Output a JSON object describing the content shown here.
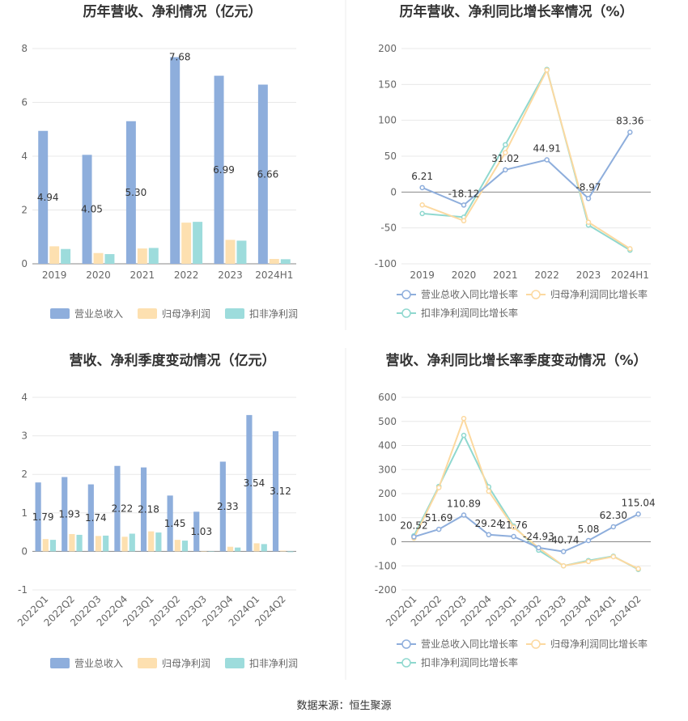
{
  "source": "数据来源：恒生聚源",
  "chart_data": [
    {
      "type": "bar",
      "title": "历年营收、净利情况（亿元）",
      "categories": [
        "2019",
        "2020",
        "2021",
        "2022",
        "2023",
        "2024H1"
      ],
      "ylim": [
        0,
        8
      ],
      "yticks": [
        0,
        2,
        4,
        6,
        8
      ],
      "grid": true,
      "legend": "bottom",
      "series": [
        {
          "name": "营业总收入",
          "color": "#8eaedc",
          "values": [
            4.94,
            4.05,
            5.3,
            7.68,
            6.99,
            6.66
          ],
          "labels": [
            "4.94",
            "4.05",
            "5.30",
            "7.68",
            "6.99",
            "6.66"
          ]
        },
        {
          "name": "归母净利润",
          "color": "#fde0b0",
          "values": [
            0.65,
            0.4,
            0.57,
            1.53,
            0.89,
            0.18
          ]
        },
        {
          "name": "扣非净利润",
          "color": "#9ddcdc",
          "values": [
            0.55,
            0.36,
            0.59,
            1.56,
            0.86,
            0.17
          ]
        }
      ]
    },
    {
      "type": "line",
      "title": "历年营收、净利同比增长率情况（%）",
      "categories": [
        "2019",
        "2020",
        "2021",
        "2022",
        "2023",
        "2024H1"
      ],
      "ylim": [
        -100,
        200
      ],
      "yticks": [
        -100,
        -50,
        0,
        50,
        100,
        150,
        200
      ],
      "grid": true,
      "legend": "bottom",
      "series": [
        {
          "name": "营业总收入同比增长率",
          "color": "#8eaedc",
          "values": [
            6.21,
            -18.12,
            31.02,
            44.91,
            -8.97,
            83.36
          ],
          "labels": [
            "6.21",
            "-18.12",
            "31.02",
            "44.91",
            "-8.97",
            "83.36"
          ]
        },
        {
          "name": "归母净利润同比增长率",
          "color": "#fcd9a0",
          "values": [
            -18,
            -40,
            55,
            170,
            -42,
            -79
          ]
        },
        {
          "name": "扣非净利润同比增长率",
          "color": "#8fd8cf",
          "values": [
            -30,
            -35,
            66,
            171,
            -46,
            -81
          ]
        }
      ]
    },
    {
      "type": "bar",
      "title": "营收、净利季度变动情况（亿元）",
      "categories": [
        "2022Q1",
        "2022Q2",
        "2022Q3",
        "2022Q4",
        "2023Q1",
        "2023Q2",
        "2023Q3",
        "2023Q4",
        "2024Q1",
        "2024Q2"
      ],
      "ylim": [
        -1,
        4
      ],
      "yticks": [
        -1,
        0,
        1,
        2,
        3,
        4
      ],
      "grid": true,
      "legend": "bottom",
      "series": [
        {
          "name": "营业总收入",
          "color": "#8eaedc",
          "values": [
            1.79,
            1.93,
            1.74,
            2.22,
            2.18,
            1.45,
            1.03,
            2.33,
            3.54,
            3.12
          ],
          "labels": [
            "1.79",
            "1.93",
            "1.74",
            "2.22",
            "2.18",
            "1.45",
            "1.03",
            "2.33",
            "3.54",
            "3.12"
          ]
        },
        {
          "name": "归母净利润",
          "color": "#fde0b0",
          "values": [
            0.32,
            0.45,
            0.4,
            0.38,
            0.52,
            0.3,
            0.0,
            0.12,
            0.21,
            0.02
          ]
        },
        {
          "name": "扣非净利润",
          "color": "#9ddcdc",
          "values": [
            0.3,
            0.43,
            0.41,
            0.46,
            0.49,
            0.28,
            0.0,
            0.1,
            0.19,
            -0.02
          ]
        }
      ]
    },
    {
      "type": "line",
      "title": "营收、净利同比增长率季度变动情况（%）",
      "categories": [
        "2022Q1",
        "2022Q2",
        "2022Q3",
        "2022Q4",
        "2023Q1",
        "2023Q2",
        "2023Q3",
        "2023Q4",
        "2024Q1",
        "2024Q2"
      ],
      "ylim": [
        -200,
        600
      ],
      "yticks": [
        -200,
        -100,
        0,
        100,
        200,
        300,
        400,
        500,
        600
      ],
      "grid": true,
      "legend": "bottom",
      "series": [
        {
          "name": "营业总收入同比增长率",
          "color": "#8eaedc",
          "values": [
            20.52,
            51.69,
            110.89,
            29.24,
            21.76,
            -24.93,
            -40.74,
            5.08,
            62.3,
            115.04
          ],
          "labels": [
            "20.52",
            "51.69",
            "110.89",
            "29.24",
            "21.76",
            "-24.93",
            "-40.74",
            "5.08",
            "62.30",
            "115.04"
          ]
        },
        {
          "name": "归母净利润同比增长率",
          "color": "#fcd9a0",
          "values": [
            15,
            225,
            512,
            210,
            60,
            -25,
            -100,
            -82,
            -62,
            -112
          ]
        },
        {
          "name": "扣非净利润同比增长率",
          "color": "#8fd8cf",
          "values": [
            25,
            230,
            442,
            228,
            65,
            -35,
            -100,
            -78,
            -60,
            -115
          ]
        }
      ]
    }
  ]
}
